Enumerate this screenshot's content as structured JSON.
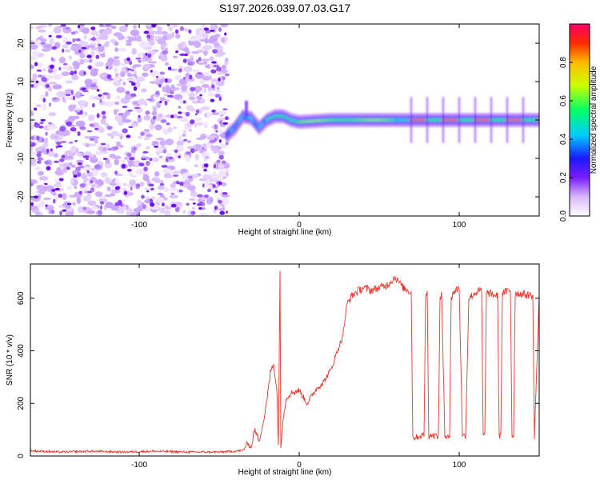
{
  "title": "S197.2026.039.07.03.G17",
  "chart_data": [
    {
      "type": "heatmap",
      "title": "S197.2026.039.07.03.G17",
      "xlabel": "Height of straight line (km)",
      "ylabel": "Frequency (Hz)",
      "xlim": [
        -168,
        150
      ],
      "ylim": [
        -25,
        25
      ],
      "xticks": [
        -100,
        0,
        100
      ],
      "yticks": [
        -20,
        -10,
        0,
        10,
        20
      ],
      "noise_region_x": [
        -168,
        -45
      ],
      "signal_onset_km": -45,
      "signal_center_hz": [
        [
          -45,
          -4
        ],
        [
          -40,
          -2
        ],
        [
          -35,
          1
        ],
        [
          -30,
          0.5
        ],
        [
          -25,
          -2
        ],
        [
          -20,
          0
        ],
        [
          -15,
          1
        ],
        [
          -10,
          1
        ],
        [
          -5,
          0
        ],
        [
          0,
          -0.5
        ],
        [
          20,
          0
        ],
        [
          40,
          0
        ],
        [
          60,
          0
        ],
        [
          80,
          0
        ],
        [
          100,
          0
        ],
        [
          120,
          0
        ],
        [
          150,
          0
        ]
      ],
      "colorbar": {
        "label": "Normalized spectral amplitude",
        "range": [
          0,
          1
        ],
        "ticks": [
          0.0,
          0.2,
          0.4,
          0.6,
          0.8
        ],
        "tick_labels": [
          "0.0",
          "0.2",
          "0.4",
          "0.6",
          "0.8"
        ]
      }
    },
    {
      "type": "line",
      "xlabel": "Height of straight line (km)",
      "ylabel": "SNR (10 * v/v)",
      "xlim": [
        -168,
        150
      ],
      "ylim": [
        0,
        730
      ],
      "xticks": [
        -100,
        0,
        100
      ],
      "yticks": [
        0,
        200,
        400,
        600
      ],
      "color": "#e8372c",
      "series": [
        {
          "name": "SNR",
          "x": [
            -168,
            -150,
            -130,
            -110,
            -90,
            -70,
            -50,
            -40,
            -35,
            -32,
            -30,
            -28,
            -25,
            -22,
            -20,
            -18,
            -16,
            -14,
            -13,
            -12,
            -11.5,
            -10,
            -8,
            -5,
            0,
            5,
            10,
            15,
            20,
            25,
            27,
            30,
            33,
            35,
            40,
            45,
            50,
            55,
            60,
            65,
            68,
            70,
            71,
            72,
            78,
            79,
            80,
            81,
            83,
            87,
            88,
            89,
            91,
            93,
            94,
            95,
            96,
            100,
            102,
            104,
            106,
            110,
            114,
            115,
            116,
            117,
            124,
            125,
            126,
            127,
            132,
            133,
            134,
            135,
            146,
            147,
            150
          ],
          "y": [
            20,
            15,
            18,
            15,
            18,
            15,
            15,
            18,
            22,
            50,
            30,
            100,
            60,
            140,
            220,
            320,
            350,
            250,
            40,
            710,
            30,
            150,
            220,
            240,
            250,
            200,
            250,
            280,
            330,
            420,
            450,
            580,
            610,
            620,
            640,
            630,
            640,
            650,
            680,
            640,
            630,
            620,
            70,
            70,
            80,
            600,
            620,
            75,
            80,
            75,
            600,
            620,
            75,
            80,
            75,
            600,
            620,
            640,
            80,
            75,
            600,
            620,
            630,
            75,
            80,
            620,
            610,
            75,
            80,
            620,
            630,
            75,
            80,
            620,
            610,
            75,
            600
          ]
        }
      ]
    }
  ]
}
